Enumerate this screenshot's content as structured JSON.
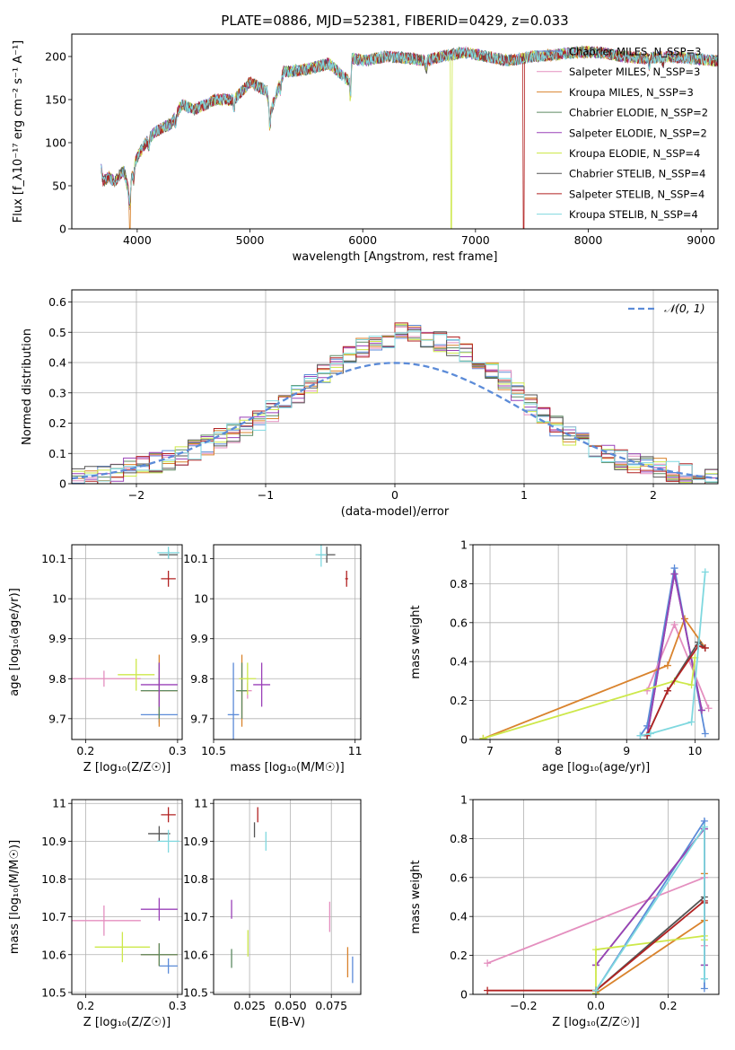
{
  "figure": {
    "title": "PLATE=0886, MJD=52381, FIBERID=0429, z=0.033"
  },
  "models": [
    {
      "name": "Chabrier MILES, N$_{SSP}$=3",
      "label": "Chabrier MILES, N_SSP=3",
      "color": "#5b8bd8"
    },
    {
      "name": "Salpeter MILES, N$_{SSP}$=3",
      "label": "Salpeter MILES, N_SSP=3",
      "color": "#e48fbf"
    },
    {
      "name": "Kroupa MILES, N$_{SSP}$=3",
      "label": "Kroupa MILES, N_SSP=3",
      "color": "#d9832d"
    },
    {
      "name": "Chabrier ELODIE, N$_{SSP}$=2",
      "label": "Chabrier ELODIE, N_SSP=2",
      "color": "#5d8a62"
    },
    {
      "name": "Salpeter ELODIE, N$_{SSP}$=2",
      "label": "Salpeter ELODIE, N_SSP=2",
      "color": "#9a40b8"
    },
    {
      "name": "Kroupa ELODIE, N$_{SSP}$=4",
      "label": "Kroupa ELODIE, N_SSP=4",
      "color": "#cde84a"
    },
    {
      "name": "Chabrier STELIB, N$_{SSP}$=4",
      "label": "Chabrier STELIB, N_SSP=4",
      "color": "#555555"
    },
    {
      "name": "Salpeter STELIB, N$_{SSP}$=4",
      "label": "Salpeter STELIB, N_SSP=4",
      "color": "#b22222"
    },
    {
      "name": "Kroupa STELIB, N$_{SSP}$=4",
      "label": "Kroupa STELIB, N_SSP=4",
      "color": "#7fd8df"
    }
  ],
  "chart_data": [
    {
      "id": "spectrum",
      "type": "line",
      "xlabel": "wavelength [Angstrom, rest frame]",
      "ylabel": "Flux [f_λ10⁻¹⁷ erg cm⁻² s⁻¹ A⁻¹]",
      "xlim": [
        3420,
        9150
      ],
      "ylim": [
        0,
        226
      ],
      "xticks": [
        4000,
        5000,
        6000,
        7000,
        8000,
        9000
      ],
      "yticks": [
        0,
        50,
        100,
        150,
        200
      ],
      "grid": false,
      "legend_position": "top-right",
      "series_profile": {
        "x": [
          3680,
          3700,
          3750,
          3800,
          3880,
          3930,
          3970,
          4050,
          4150,
          4300,
          4400,
          4500,
          4700,
          4860,
          5000,
          5150,
          5180,
          5300,
          5500,
          5700,
          5890,
          5900,
          6000,
          6200,
          6400,
          6560,
          6700,
          6900,
          7100,
          7300,
          7500,
          7700,
          7900,
          8100,
          8300,
          8500,
          8700,
          8900,
          9150
        ],
        "y": [
          70,
          55,
          60,
          55,
          68,
          40,
          75,
          95,
          112,
          122,
          145,
          138,
          150,
          150,
          170,
          160,
          135,
          182,
          185,
          192,
          170,
          198,
          195,
          200,
          198,
          195,
          200,
          205,
          200,
          195,
          200,
          202,
          205,
          205,
          200,
          198,
          200,
          198,
          195
        ]
      },
      "dropouts": [
        {
          "model": "Kroupa ELODIE, N$_{SSP}$=4",
          "from_x": 6780
        },
        {
          "model": "Salpeter STELIB, N$_{SSP}$=4",
          "from_x": 7420
        },
        {
          "model": "Kroupa MILES, N$_{SSP}$=3",
          "from_x": 3930
        }
      ]
    },
    {
      "id": "residuals",
      "type": "histogram",
      "xlabel": "(data-model)/error",
      "ylabel": "Normed distribution",
      "xlim": [
        -2.5,
        2.5
      ],
      "ylim": [
        0,
        0.64
      ],
      "xticks": [
        -2,
        -1,
        0,
        1,
        2
      ],
      "yticks": [
        0.0,
        0.1,
        0.2,
        0.3,
        0.4,
        0.5,
        0.6
      ],
      "grid": true,
      "legend_position": "top-right",
      "reference": {
        "name": "𝒩(0, 1)",
        "mean": 0,
        "sigma": 1,
        "color": "#5b8bd8"
      },
      "bin_width": 0.1,
      "base_shape": [
        0.02,
        0.025,
        0.03,
        0.04,
        0.05,
        0.06,
        0.07,
        0.08,
        0.09,
        0.11,
        0.13,
        0.15,
        0.17,
        0.19,
        0.21,
        0.24,
        0.27,
        0.3,
        0.33,
        0.36,
        0.39,
        0.42,
        0.45,
        0.47,
        0.48,
        0.5,
        0.49,
        0.48,
        0.47,
        0.45,
        0.43,
        0.41,
        0.38,
        0.34,
        0.3,
        0.26,
        0.22,
        0.19,
        0.16,
        0.14,
        0.12,
        0.1,
        0.08,
        0.07,
        0.06,
        0.05,
        0.04,
        0.035,
        0.03,
        0.025
      ]
    },
    {
      "id": "age_vs_Z",
      "type": "errorbar",
      "xlabel": "Z [log₁₀(Z/Z☉)]",
      "ylabel": "age  [log₁₀(age/yr)]",
      "xlim": [
        0.185,
        0.305
      ],
      "ylim": [
        9.648,
        10.135
      ],
      "xticks": [
        0.2,
        0.3
      ],
      "yticks": [
        9.7,
        9.8,
        9.9,
        10.0,
        10.1
      ],
      "grid": true,
      "points": [
        {
          "model": 0,
          "x": 0.28,
          "y": 9.71,
          "xerr": 0.02,
          "yerr": 0.02
        },
        {
          "model": 1,
          "x": 0.22,
          "y": 9.8,
          "xerr": 0.04,
          "yerr": 0.02
        },
        {
          "model": 2,
          "x": 0.28,
          "y": 9.77,
          "xerr": 0.02,
          "yerr": 0.09
        },
        {
          "model": 3,
          "x": 0.28,
          "y": 9.77,
          "xerr": 0.02,
          "yerr": 0.07
        },
        {
          "model": 4,
          "x": 0.28,
          "y": 9.785,
          "xerr": 0.02,
          "yerr": 0.055
        },
        {
          "model": 5,
          "x": 0.255,
          "y": 9.81,
          "xerr": 0.02,
          "yerr": 0.04
        },
        {
          "model": 6,
          "x": 0.29,
          "y": 10.11,
          "xerr": 0.01,
          "yerr": 0.01
        },
        {
          "model": 7,
          "x": 0.29,
          "y": 10.05,
          "xerr": 0.008,
          "yerr": 0.02
        },
        {
          "model": 8,
          "x": 0.29,
          "y": 10.115,
          "xerr": 0.012,
          "yerr": 0.015
        }
      ]
    },
    {
      "id": "age_vs_mass",
      "type": "errorbar",
      "xlabel": "mass [log₁₀(M/M☉)]",
      "ylabel": "",
      "xlim": [
        10.5,
        11.02
      ],
      "ylim": [
        9.648,
        10.135
      ],
      "xticks": [
        10.5,
        11.0
      ],
      "yticks": [
        9.7,
        9.8,
        9.9,
        10.0,
        10.1
      ],
      "grid": true,
      "points": [
        {
          "model": 0,
          "x": 10.57,
          "y": 9.71,
          "xerr": 0.02,
          "yerr": 0.13
        },
        {
          "model": 1,
          "x": 10.62,
          "y": 9.77,
          "xerr": 0.015,
          "yerr": 0.02
        },
        {
          "model": 2,
          "x": 10.6,
          "y": 9.77,
          "xerr": 0.02,
          "yerr": 0.09
        },
        {
          "model": 3,
          "x": 10.6,
          "y": 9.77,
          "xerr": 0.02,
          "yerr": 0.07
        },
        {
          "model": 4,
          "x": 10.67,
          "y": 9.785,
          "xerr": 0.03,
          "yerr": 0.055
        },
        {
          "model": 5,
          "x": 10.62,
          "y": 9.8,
          "xerr": 0.03,
          "yerr": 0.04
        },
        {
          "model": 6,
          "x": 10.9,
          "y": 10.11,
          "xerr": 0.03,
          "yerr": 0.02
        },
        {
          "model": 7,
          "x": 10.97,
          "y": 10.05,
          "xerr": 0.005,
          "yerr": 0.02
        },
        {
          "model": 8,
          "x": 10.88,
          "y": 10.11,
          "xerr": 0.02,
          "yerr": 0.03
        }
      ]
    },
    {
      "id": "mass_weight_vs_age",
      "type": "line",
      "xlabel": "age  [log₁₀(age/yr)]",
      "ylabel": "mass weight",
      "xlim": [
        6.75,
        10.35
      ],
      "ylim": [
        0,
        1
      ],
      "xticks": [
        7,
        8,
        9,
        10
      ],
      "yticks": [
        0.0,
        0.2,
        0.4,
        0.6,
        0.8,
        1.0
      ],
      "grid": true,
      "series": [
        {
          "model": 0,
          "x": [
            9.2,
            9.3,
            9.7,
            10.15
          ],
          "y": [
            0.02,
            0.07,
            0.88,
            0.03
          ]
        },
        {
          "model": 1,
          "x": [
            9.3,
            9.7,
            10.2
          ],
          "y": [
            0.25,
            0.59,
            0.16
          ]
        },
        {
          "model": 2,
          "x": [
            6.9,
            9.6,
            9.85,
            10.15
          ],
          "y": [
            0.005,
            0.38,
            0.62,
            0.47
          ]
        },
        {
          "model": 3,
          "x": [
            9.3,
            9.7,
            10.1
          ],
          "y": [
            0.02,
            0.85,
            0.15
          ]
        },
        {
          "model": 4,
          "x": [
            9.3,
            9.7,
            10.1
          ],
          "y": [
            0.02,
            0.85,
            0.15
          ]
        },
        {
          "model": 5,
          "x": [
            6.9,
            9.7,
            9.95,
            10.0
          ],
          "y": [
            0.005,
            0.3,
            0.28,
            0.42
          ]
        },
        {
          "model": 6,
          "x": [
            9.3,
            9.6,
            10.05,
            10.15
          ],
          "y": [
            0.02,
            0.25,
            0.5,
            0.47
          ]
        },
        {
          "model": 7,
          "x": [
            9.3,
            9.6,
            10.05,
            10.15
          ],
          "y": [
            0.02,
            0.25,
            0.48,
            0.47
          ]
        },
        {
          "model": 8,
          "x": [
            9.2,
            9.35,
            9.95,
            10.15
          ],
          "y": [
            0.02,
            0.03,
            0.09,
            0.86
          ]
        }
      ]
    },
    {
      "id": "mass_vs_Z",
      "type": "errorbar",
      "xlabel": "Z [log₁₀(Z/Z☉)]",
      "ylabel": "mass [log₁₀(M/M☉)]",
      "xlim": [
        0.185,
        0.305
      ],
      "ylim": [
        10.495,
        11.01
      ],
      "xticks": [
        0.2,
        0.3
      ],
      "yticks": [
        10.5,
        10.6,
        10.7,
        10.8,
        10.9,
        11.0
      ],
      "grid": true,
      "points": [
        {
          "model": 0,
          "x": 0.29,
          "y": 10.57,
          "xerr": 0.01,
          "yerr": 0.02
        },
        {
          "model": 1,
          "x": 0.22,
          "y": 10.69,
          "xerr": 0.04,
          "yerr": 0.04
        },
        {
          "model": 2,
          "x": 0.28,
          "y": 10.6,
          "xerr": 0.02,
          "yerr": 0.03
        },
        {
          "model": 3,
          "x": 0.28,
          "y": 10.6,
          "xerr": 0.02,
          "yerr": 0.03
        },
        {
          "model": 4,
          "x": 0.28,
          "y": 10.72,
          "xerr": 0.02,
          "yerr": 0.03
        },
        {
          "model": 5,
          "x": 0.24,
          "y": 10.62,
          "xerr": 0.03,
          "yerr": 0.04
        },
        {
          "model": 6,
          "x": 0.28,
          "y": 10.92,
          "xerr": 0.012,
          "yerr": 0.02
        },
        {
          "model": 7,
          "x": 0.29,
          "y": 10.97,
          "xerr": 0.008,
          "yerr": 0.02
        },
        {
          "model": 8,
          "x": 0.29,
          "y": 10.9,
          "xerr": 0.012,
          "yerr": 0.03
        }
      ]
    },
    {
      "id": "mass_vs_ebv",
      "type": "errorbar",
      "xlabel": "E(B-V)",
      "ylabel": "",
      "xlim": [
        0.003,
        0.093
      ],
      "ylim": [
        10.495,
        11.01
      ],
      "xticks": [
        0.025,
        0.05,
        0.075
      ],
      "xtick_labels": [
        "0.025",
        "0.050",
        "0.075"
      ],
      "yticks": [
        10.5,
        10.6,
        10.7,
        10.8,
        10.9,
        11.0
      ],
      "grid": true,
      "points": [
        {
          "model": 0,
          "x": 0.088,
          "y": 10.56,
          "xerr": 0,
          "yerr": 0.035
        },
        {
          "model": 1,
          "x": 0.074,
          "y": 10.7,
          "xerr": 0,
          "yerr": 0.04
        },
        {
          "model": 2,
          "x": 0.085,
          "y": 10.58,
          "xerr": 0,
          "yerr": 0.04
        },
        {
          "model": 3,
          "x": 0.014,
          "y": 10.59,
          "xerr": 0,
          "yerr": 0.025
        },
        {
          "model": 4,
          "x": 0.014,
          "y": 10.72,
          "xerr": 0,
          "yerr": 0.025
        },
        {
          "model": 5,
          "x": 0.024,
          "y": 10.63,
          "xerr": 0,
          "yerr": 0.035
        },
        {
          "model": 6,
          "x": 0.028,
          "y": 10.93,
          "xerr": 0,
          "yerr": 0.02
        },
        {
          "model": 7,
          "x": 0.03,
          "y": 10.97,
          "xerr": 0,
          "yerr": 0.02
        },
        {
          "model": 8,
          "x": 0.035,
          "y": 10.9,
          "xerr": 0,
          "yerr": 0.025
        }
      ]
    },
    {
      "id": "mass_weight_vs_Z",
      "type": "line",
      "xlabel": "Z [log₁₀(Z/Z☉)]",
      "ylabel": "mass weight",
      "xlim": [
        -0.34,
        0.34
      ],
      "ylim": [
        0,
        1
      ],
      "xticks": [
        -0.2,
        0.0,
        0.2
      ],
      "xtick_labels": [
        "−0.2",
        "0.0",
        "0.2"
      ],
      "yticks": [
        0.0,
        0.2,
        0.4,
        0.6,
        0.8,
        1.0
      ],
      "grid": true,
      "series": [
        {
          "model": 0,
          "x": [
            0.0,
            0.3,
            0.3,
            0.3
          ],
          "y": [
            0.02,
            0.89,
            0.08,
            0.03
          ]
        },
        {
          "model": 1,
          "x": [
            -0.3,
            0.3,
            0.3
          ],
          "y": [
            0.16,
            0.6,
            0.25
          ]
        },
        {
          "model": 2,
          "x": [
            0.0,
            0.3,
            0.3
          ],
          "y": [
            0.005,
            0.38,
            0.62
          ]
        },
        {
          "model": 3,
          "x": [
            0.0,
            0.3,
            0.3
          ],
          "y": [
            0.15,
            0.85,
            0.15
          ]
        },
        {
          "model": 4,
          "x": [
            0.0,
            0.3,
            0.3
          ],
          "y": [
            0.15,
            0.85,
            0.15
          ]
        },
        {
          "model": 5,
          "x": [
            0.0,
            0.0,
            0.3,
            0.3
          ],
          "y": [
            0.005,
            0.23,
            0.3,
            0.28
          ]
        },
        {
          "model": 6,
          "x": [
            0.0,
            0.3,
            0.3
          ],
          "y": [
            0.02,
            0.5,
            0.47
          ]
        },
        {
          "model": 7,
          "x": [
            -0.3,
            0.0,
            0.3,
            0.3
          ],
          "y": [
            0.02,
            0.02,
            0.48,
            0.47
          ]
        },
        {
          "model": 8,
          "x": [
            0.0,
            0.3,
            0.3
          ],
          "y": [
            0.02,
            0.86,
            0.08
          ]
        }
      ]
    }
  ]
}
